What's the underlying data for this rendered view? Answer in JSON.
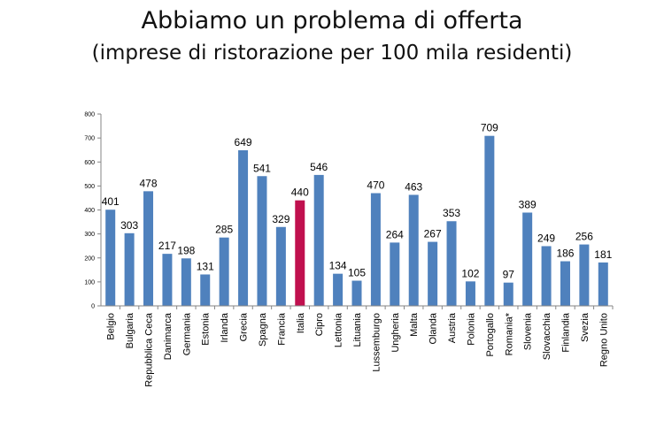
{
  "header": {
    "title": "Abbiamo un problema di offerta",
    "subtitle": "(imprese di ristorazione per 100 mila residenti)"
  },
  "chart_data": {
    "type": "bar",
    "title": "Abbiamo un problema di offerta",
    "subtitle": "(imprese di ristorazione per 100 mila residenti)",
    "xlabel": "",
    "ylabel": "",
    "ylim": [
      0,
      800
    ],
    "yticks": [
      0,
      100,
      200,
      300,
      400,
      500,
      600,
      700,
      800
    ],
    "grid": false,
    "legend": "none",
    "bar_color": "#4f81bd",
    "highlight_color": "#c0104e",
    "highlight_category": "Italia",
    "categories": [
      "Belgio",
      "Bulgaria",
      "Repubblica Ceca",
      "Danimarca",
      "Germania",
      "Estonia",
      "Irlanda",
      "Grecia",
      "Spagna",
      "Francia",
      "Italia",
      "Cipro",
      "Lettonia",
      "Lituania",
      "Lussemburgo",
      "Ungheria",
      "Malta",
      "Olanda",
      "Austria",
      "Polonia",
      "Portogallo",
      "Romania*",
      "Slovenia",
      "Slovacchia",
      "Finlandia",
      "Svezia",
      "Regno Unito"
    ],
    "values": [
      401,
      303,
      478,
      217,
      198,
      131,
      285,
      649,
      541,
      329,
      440,
      546,
      134,
      105,
      470,
      264,
      463,
      267,
      353,
      102,
      709,
      97,
      389,
      249,
      186,
      256,
      181
    ]
  }
}
